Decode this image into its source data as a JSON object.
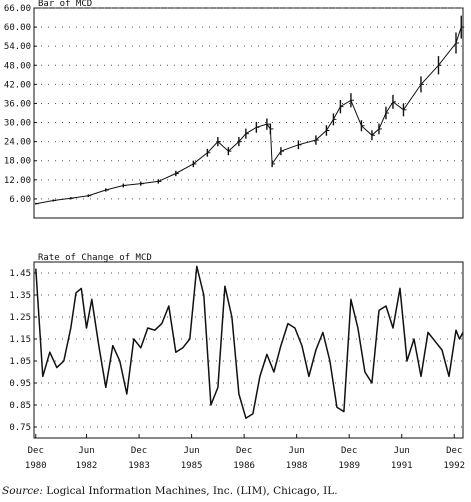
{
  "source": {
    "label": "Source:",
    "text": "Logical Information Machines, Inc. (LIM), Chicago, IL."
  },
  "x_axis": {
    "months": [
      "Dec",
      "Jun",
      "Dec",
      "Jun",
      "Dec",
      "Jun",
      "Dec",
      "Jun",
      "Dec",
      "Jun",
      "Dec"
    ],
    "years": [
      "1980",
      "1982",
      "1983",
      "1985",
      "1986",
      "1988",
      "1989",
      "1991",
      "1992"
    ]
  },
  "colors": {
    "ink": "#111111",
    "grid": "#555555",
    "background": "#ffffff"
  },
  "chart_data": [
    {
      "type": "bar",
      "subtype": "price-bars",
      "title": "Bar of MCD",
      "y_ticks": [
        "6.00",
        "12.00",
        "18.00",
        "24.00",
        "30.00",
        "36.00",
        "42.00",
        "48.00",
        "54.00",
        "60.00",
        "66.00"
      ],
      "ylim": [
        0,
        66
      ],
      "xlim": [
        1980.95,
        1993.2
      ],
      "grid": "dotted",
      "x": [
        1981.0,
        1981.5,
        1982.0,
        1982.5,
        1983.0,
        1983.5,
        1984.0,
        1984.5,
        1985.0,
        1985.5,
        1985.9,
        1986.2,
        1986.5,
        1986.8,
        1987.0,
        1987.3,
        1987.6,
        1987.7,
        1987.75,
        1988.0,
        1988.5,
        1989.0,
        1989.3,
        1989.5,
        1989.7,
        1990.0,
        1990.3,
        1990.6,
        1990.8,
        1991.0,
        1991.2,
        1991.5,
        1992.0,
        1992.5,
        1993.0,
        1993.15
      ],
      "close": [
        4.5,
        5.5,
        6.2,
        7.0,
        8.8,
        10.2,
        10.8,
        11.5,
        14.0,
        17.0,
        20.5,
        24.0,
        21.0,
        24.0,
        26.5,
        28.5,
        29.5,
        28.0,
        17.0,
        21.0,
        23.0,
        24.5,
        27.5,
        31.0,
        35.0,
        37.0,
        29.0,
        26.0,
        28.0,
        33.0,
        36.5,
        34.0,
        42.0,
        48.0,
        55.0,
        60.0
      ]
    },
    {
      "type": "line",
      "title": "Rate of Change of MCD",
      "y_ticks": [
        "0.75",
        "0.85",
        "0.95",
        "1.05",
        "1.15",
        "1.25",
        "1.35",
        "1.45"
      ],
      "ylim": [
        0.7,
        1.5
      ],
      "xlim": [
        1980.95,
        1993.2
      ],
      "grid": "dotted",
      "x": [
        1981.0,
        1981.2,
        1981.4,
        1981.6,
        1981.8,
        1982.0,
        1982.15,
        1982.3,
        1982.45,
        1982.6,
        1982.8,
        1983.0,
        1983.2,
        1983.4,
        1983.6,
        1983.8,
        1984.0,
        1984.2,
        1984.4,
        1984.6,
        1984.8,
        1985.0,
        1985.2,
        1985.4,
        1985.6,
        1985.8,
        1986.0,
        1986.2,
        1986.4,
        1986.6,
        1986.8,
        1987.0,
        1987.2,
        1987.4,
        1987.6,
        1987.8,
        1988.0,
        1988.2,
        1988.4,
        1988.6,
        1988.8,
        1989.0,
        1989.2,
        1989.4,
        1989.6,
        1989.8,
        1990.0,
        1990.2,
        1990.4,
        1990.6,
        1990.8,
        1991.0,
        1991.2,
        1991.4,
        1991.6,
        1991.8,
        1992.0,
        1992.2,
        1992.4,
        1992.6,
        1992.8,
        1993.0,
        1993.1,
        1993.2
      ],
      "y": [
        1.47,
        0.98,
        1.09,
        1.02,
        1.05,
        1.2,
        1.36,
        1.38,
        1.2,
        1.33,
        1.12,
        0.93,
        1.12,
        1.05,
        0.9,
        1.15,
        1.11,
        1.2,
        1.19,
        1.22,
        1.3,
        1.09,
        1.11,
        1.15,
        1.48,
        1.35,
        0.85,
        0.93,
        1.39,
        1.25,
        0.9,
        0.79,
        0.81,
        0.98,
        1.08,
        1.0,
        1.12,
        1.22,
        1.2,
        1.12,
        0.98,
        1.1,
        1.18,
        1.05,
        0.84,
        0.82,
        1.33,
        1.2,
        1.0,
        0.95,
        1.28,
        1.3,
        1.2,
        1.38,
        1.05,
        1.15,
        0.98,
        1.18,
        1.14,
        1.1,
        0.98,
        1.19,
        1.15,
        1.18
      ]
    }
  ]
}
